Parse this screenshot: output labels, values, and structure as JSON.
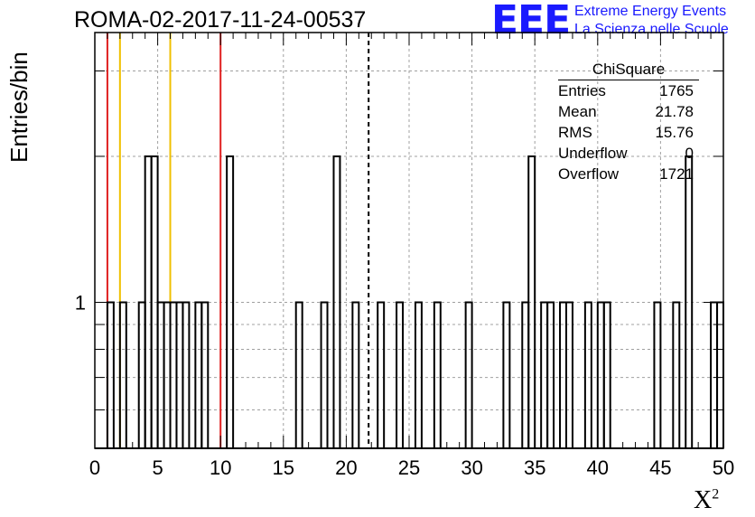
{
  "header": {
    "title": "ROMA-02-2017-11-24-00537",
    "logo_mark": "EEE",
    "logo_line1": "Extreme Energy Events",
    "logo_line2": "La Scienza nelle Scuole"
  },
  "stats": {
    "title": "ChiSquare",
    "rows": [
      {
        "key": "Entries",
        "value": "1765"
      },
      {
        "key": "Mean",
        "value": "21.78"
      },
      {
        "key": "RMS",
        "value": "15.76"
      },
      {
        "key": "Underflow",
        "value": "0"
      },
      {
        "key": "Overflow",
        "value": "1721"
      }
    ]
  },
  "colors": {
    "histogram": "#000000",
    "red_line": "#e02020",
    "yellow_line": "#f0c000",
    "mean_line": "#000000",
    "grid": "#a0a0a0"
  },
  "chart_data": {
    "type": "bar",
    "title": "ROMA-02-2017-11-24-00537",
    "xlabel": "X",
    "xlabel_sup": "2",
    "ylabel": "Entries/bin",
    "xlim": [
      0,
      50
    ],
    "ylim": [
      0.5,
      3.6
    ],
    "yscale": "log",
    "bin_width": 0.5,
    "grid": true,
    "x_ticks": [
      0,
      5,
      10,
      15,
      20,
      25,
      30,
      35,
      40,
      45,
      50
    ],
    "x_tick_labels": [
      "0",
      "5",
      "10",
      "15",
      "20",
      "25",
      "30",
      "35",
      "40",
      "45",
      "50"
    ],
    "y_ticks": [
      1
    ],
    "y_tick_labels": [
      "1"
    ],
    "bins": [
      {
        "x": 1.0,
        "count": 1
      },
      {
        "x": 2.0,
        "count": 1
      },
      {
        "x": 3.5,
        "count": 1
      },
      {
        "x": 4.0,
        "count": 2
      },
      {
        "x": 4.5,
        "count": 2
      },
      {
        "x": 5.0,
        "count": 1
      },
      {
        "x": 5.5,
        "count": 1
      },
      {
        "x": 6.0,
        "count": 1
      },
      {
        "x": 6.5,
        "count": 1
      },
      {
        "x": 7.0,
        "count": 1
      },
      {
        "x": 8.0,
        "count": 1
      },
      {
        "x": 8.5,
        "count": 1
      },
      {
        "x": 10.5,
        "count": 2
      },
      {
        "x": 16.0,
        "count": 1
      },
      {
        "x": 18.0,
        "count": 1
      },
      {
        "x": 19.0,
        "count": 2
      },
      {
        "x": 20.5,
        "count": 1
      },
      {
        "x": 22.5,
        "count": 1
      },
      {
        "x": 24.0,
        "count": 1
      },
      {
        "x": 25.5,
        "count": 1
      },
      {
        "x": 27.0,
        "count": 1
      },
      {
        "x": 29.5,
        "count": 1
      },
      {
        "x": 32.5,
        "count": 1
      },
      {
        "x": 34.0,
        "count": 1
      },
      {
        "x": 34.5,
        "count": 2
      },
      {
        "x": 35.5,
        "count": 1
      },
      {
        "x": 36.0,
        "count": 1
      },
      {
        "x": 37.0,
        "count": 1
      },
      {
        "x": 37.5,
        "count": 1
      },
      {
        "x": 39.0,
        "count": 1
      },
      {
        "x": 40.0,
        "count": 1
      },
      {
        "x": 40.5,
        "count": 1
      },
      {
        "x": 44.5,
        "count": 1
      },
      {
        "x": 46.0,
        "count": 1
      },
      {
        "x": 47.0,
        "count": 2
      },
      {
        "x": 49.0,
        "count": 1
      },
      {
        "x": 49.5,
        "count": 1
      }
    ],
    "vertical_lines": [
      {
        "x": 1.0,
        "color": "red",
        "style": "solid"
      },
      {
        "x": 2.0,
        "color": "yellow",
        "style": "solid"
      },
      {
        "x": 6.0,
        "color": "yellow",
        "style": "solid"
      },
      {
        "x": 10.0,
        "color": "red",
        "style": "solid"
      },
      {
        "x": 21.78,
        "color": "black",
        "style": "dashed"
      }
    ]
  }
}
